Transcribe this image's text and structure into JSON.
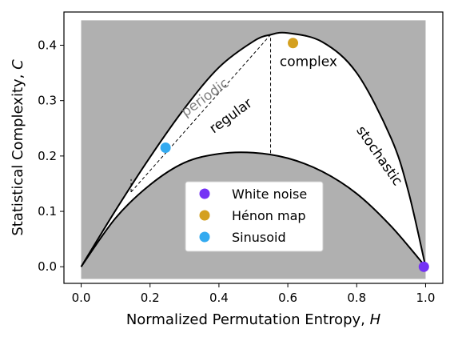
{
  "chart_data": {
    "type": "scatter",
    "xlabel": "Normalized Permutation Entropy, ",
    "xlabel_var": "H",
    "ylabel": "Statistical Complexity, ",
    "ylabel_var": "C",
    "xlim": [
      -0.05,
      1.05
    ],
    "ylim": [
      -0.03,
      0.46
    ],
    "xticks": [
      0.0,
      0.2,
      0.4,
      0.6,
      0.8,
      1.0
    ],
    "xtick_labels": [
      "0.0",
      "0.2",
      "0.4",
      "0.6",
      "0.8",
      "1.0"
    ],
    "yticks": [
      0.0,
      0.1,
      0.2,
      0.3,
      0.4
    ],
    "ytick_labels": [
      "0.0",
      "0.1",
      "0.2",
      "0.3",
      "0.4"
    ],
    "grid": false,
    "shaded_background": {
      "x": [
        0.0,
        1.0
      ],
      "y": [
        -0.022,
        0.445
      ],
      "color": "#b0b0b0"
    },
    "upper_curve": {
      "x": [
        0.0,
        0.1,
        0.2,
        0.3,
        0.4,
        0.5,
        0.55,
        0.6,
        0.7,
        0.8,
        0.9,
        0.95,
        1.0
      ],
      "y": [
        0.0,
        0.102,
        0.198,
        0.286,
        0.36,
        0.407,
        0.419,
        0.422,
        0.406,
        0.35,
        0.232,
        0.136,
        0.0
      ]
    },
    "lower_curve": {
      "x": [
        0.0,
        0.1,
        0.2,
        0.3,
        0.4,
        0.5,
        0.6,
        0.7,
        0.8,
        0.9,
        1.0
      ],
      "y": [
        0.0,
        0.088,
        0.148,
        0.188,
        0.204,
        0.206,
        0.196,
        0.172,
        0.132,
        0.073,
        0.0
      ]
    },
    "dashed_lines": [
      {
        "x": [
          0.145,
          0.145
        ],
        "y": [
          0.135,
          0.158
        ]
      },
      {
        "x": [
          0.145,
          0.55
        ],
        "y": [
          0.135,
          0.419
        ]
      },
      {
        "x": [
          0.55,
          0.55
        ],
        "y": [
          0.205,
          0.419
        ]
      }
    ],
    "region_labels": [
      {
        "text": "periodic",
        "x": 0.36,
        "y": 0.305,
        "rotation": -36,
        "color": "#7f7f7f"
      },
      {
        "text": "regular",
        "x": 0.435,
        "y": 0.272,
        "rotation": -36,
        "color": "#000000"
      },
      {
        "text": "complex",
        "x": 0.66,
        "y": 0.37,
        "rotation": 0,
        "color": "#000000"
      },
      {
        "text": "stochastic",
        "x": 0.865,
        "y": 0.2,
        "rotation": 55,
        "color": "#000000"
      }
    ],
    "series": [
      {
        "name": "White noise",
        "color": "#7432f5",
        "x": [
          0.995
        ],
        "y": [
          0.0
        ]
      },
      {
        "name": "Hénon map",
        "color": "#d4a01f",
        "x": [
          0.615
        ],
        "y": [
          0.404
        ]
      },
      {
        "name": "Sinusoid",
        "color": "#33aaf0",
        "x": [
          0.245
        ],
        "y": [
          0.215
        ]
      }
    ],
    "legend_position": "lower-center"
  }
}
